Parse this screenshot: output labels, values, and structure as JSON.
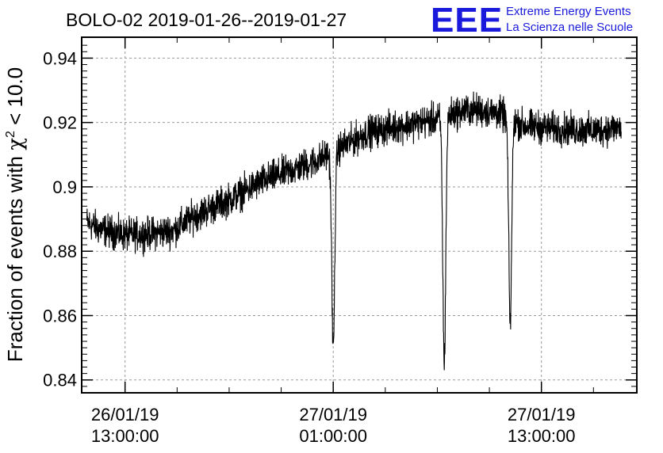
{
  "chart_data": {
    "type": "line",
    "title": "BOLO-02 2019-01-26--2019-01-27",
    "ylabel_prefix": "Fraction of events with ",
    "ylabel_chi": "χ",
    "ylabel_sup": "2",
    "ylabel_suffix": " < 10.0",
    "xlabel": "",
    "ylim": [
      0.836,
      0.9465
    ],
    "xlim_hours": [
      -2.5,
      29.5
    ],
    "grid": true,
    "y_ticks": [
      0.84,
      0.86,
      0.88,
      0.9,
      0.92,
      0.94
    ],
    "y_tick_labels": [
      "0.84",
      "0.86",
      "0.88",
      "0.9",
      "0.92",
      "0.94"
    ],
    "x_ticks_hours": [
      0,
      12,
      24
    ],
    "x_tick_labels": [
      {
        "date": "26/01/19",
        "time": "13:00:00"
      },
      {
        "date": "27/01/19",
        "time": "01:00:00"
      },
      {
        "date": "27/01/19",
        "time": "13:00:00"
      }
    ],
    "x_unit_note": "hours since 26/01/19 13:00:00",
    "series": [
      {
        "color": "#000000",
        "trend_points": [
          [
            -2.2,
            0.889
          ],
          [
            -1.5,
            0.887
          ],
          [
            0,
            0.885
          ],
          [
            1.5,
            0.8855
          ],
          [
            2.8,
            0.8865
          ],
          [
            4,
            0.891
          ],
          [
            6,
            0.896
          ],
          [
            8,
            0.902
          ],
          [
            10,
            0.906
          ],
          [
            11,
            0.908
          ],
          [
            12,
            0.911
          ],
          [
            13,
            0.914
          ],
          [
            14,
            0.917
          ],
          [
            16,
            0.919
          ],
          [
            18,
            0.921
          ],
          [
            19,
            0.923
          ],
          [
            20,
            0.924
          ],
          [
            21.5,
            0.923
          ],
          [
            23,
            0.919
          ],
          [
            25,
            0.918
          ],
          [
            27,
            0.9175
          ],
          [
            28.6,
            0.9185
          ]
        ],
        "dips": [
          {
            "x": 12.0,
            "y": 0.8495
          },
          {
            "x": 18.4,
            "y": 0.8449
          },
          {
            "x": 22.2,
            "y": 0.8577
          }
        ],
        "noise_amplitude": 0.004,
        "x_start": -2.2,
        "x_end": 28.6,
        "points_per_hour": 80
      }
    ]
  },
  "branding": {
    "logo_letters": "EEE",
    "line1": "Extreme Energy Events",
    "line2": "La Scienza nelle Scuole",
    "color": "#1a1adc"
  }
}
